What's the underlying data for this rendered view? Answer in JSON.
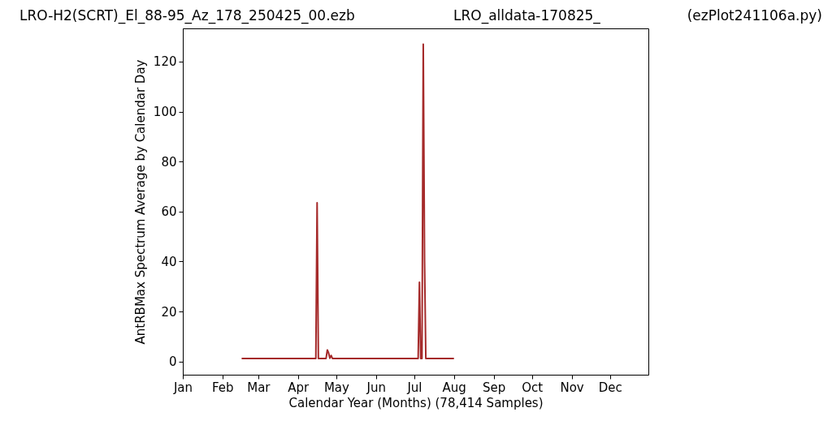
{
  "chart_data": {
    "type": "line",
    "title": "LRO-H2(SCRT)_El_88-95_Az_178_250425_00.ezb",
    "annotations": [
      "LRO_alldata-170825_",
      "(ezPlot241106a.py)"
    ],
    "xlabel": "Calendar Year (Months) (78,414 Samples)",
    "ylabel": "AntRBMax Spectrum Average by Calendar Day",
    "x": [
      "--02-16",
      "--04-15",
      "--04-16",
      "--04-17",
      "--04-23",
      "--04-24",
      "--04-25",
      "--04-26",
      "--04-27",
      "--04-28",
      "--07-04",
      "--07-05",
      "--07-06",
      "--07-07",
      "--07-08",
      "--07-09",
      "--07-10",
      "--08-01"
    ],
    "series": [
      {
        "color": "#a52a2a",
        "values": [
          1.2,
          1.2,
          63.5,
          1.2,
          1.2,
          4.6,
          3.4,
          1.3,
          2.4,
          1.2,
          1.2,
          31.7,
          1.2,
          1.2,
          127,
          40.3,
          1.2,
          1.2
        ]
      }
    ],
    "xlim": [
      "--01-01",
      "--12-31"
    ],
    "xticks": [
      {
        "value": "--01-01",
        "label": "Jan"
      },
      {
        "value": "--02-01",
        "label": "Feb"
      },
      {
        "value": "--03-01",
        "label": "Mar"
      },
      {
        "value": "--04-01",
        "label": "Apr"
      },
      {
        "value": "--05-01",
        "label": "May"
      },
      {
        "value": "--06-01",
        "label": "Jun"
      },
      {
        "value": "--07-01",
        "label": "Jul"
      },
      {
        "value": "--08-01",
        "label": "Aug"
      },
      {
        "value": "--09-01",
        "label": "Sep"
      },
      {
        "value": "--10-01",
        "label": "Oct"
      },
      {
        "value": "--11-01",
        "label": "Nov"
      },
      {
        "value": "--12-01",
        "label": "Dec"
      }
    ],
    "ylim": [
      -5.3,
      133.3
    ],
    "yticks": [
      0,
      20,
      40,
      60,
      80,
      100,
      120
    ]
  }
}
